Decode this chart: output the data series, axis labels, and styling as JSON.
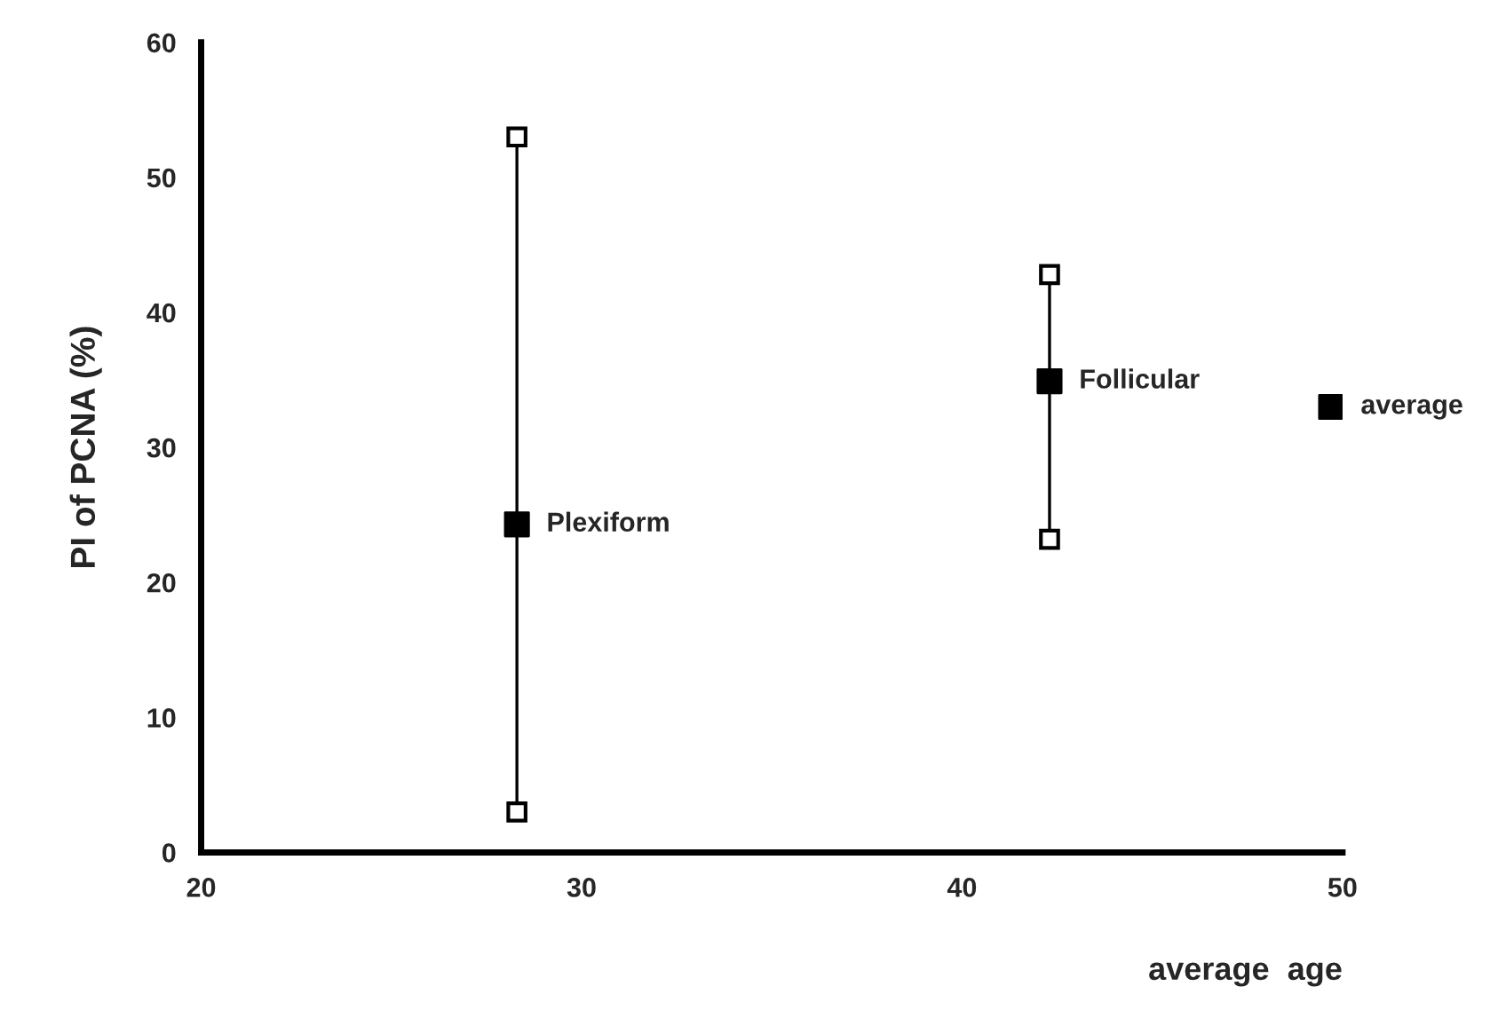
{
  "chart_data": {
    "type": "scatter",
    "xlabel": "average  age",
    "ylabel": "PI of PCNA (%)",
    "xlim": [
      20,
      50
    ],
    "ylim": [
      0,
      60
    ],
    "xticks": [
      20,
      30,
      40,
      50
    ],
    "yticks": [
      0,
      10,
      20,
      30,
      40,
      50,
      60
    ],
    "grid": false,
    "marker": "square",
    "series": [
      {
        "type": "line",
        "color": "#000000",
        "x": [
          28.3,
          28.3,
          null,
          42.3,
          42.3
        ],
        "values": [
          3,
          53,
          null,
          23.2,
          42.8
        ]
      },
      {
        "color": "#000000",
        "x": [
          28.3,
          42.3,
          49.7
        ],
        "values": [
          24.3,
          34.9,
          33.0
        ]
      }
    ],
    "annotations": [
      {
        "text": "Plexiform",
        "x": 28.3,
        "y": 24.3
      },
      {
        "text": "Follicular",
        "x": 42.3,
        "y": 34.9
      },
      {
        "text": "average",
        "x": 49.7,
        "y": 33.0
      }
    ]
  }
}
